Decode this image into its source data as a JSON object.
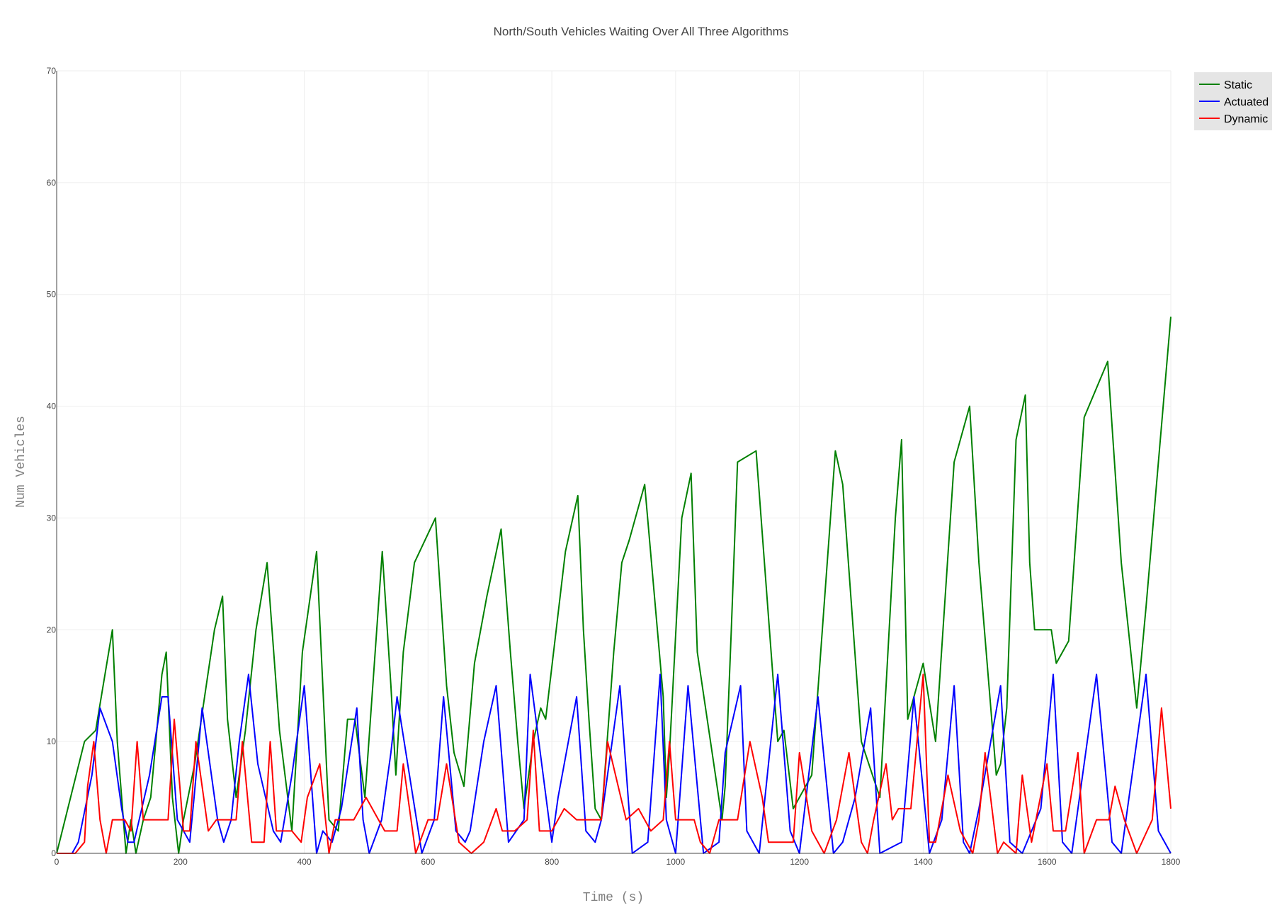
{
  "chart_data": {
    "type": "line",
    "title": "North/South Vehicles Waiting Over All Three Algorithms",
    "xlabel": "Time (s)",
    "ylabel": "Num Vehicles",
    "xlim": [
      0,
      1800
    ],
    "ylim": [
      0,
      70
    ],
    "x_ticks": [
      0,
      200,
      400,
      600,
      800,
      1000,
      1200,
      1400,
      1600,
      1800
    ],
    "y_ticks": [
      0,
      10,
      20,
      30,
      40,
      50,
      60,
      70
    ],
    "grid": true,
    "legend_position": "top-right",
    "series": [
      {
        "name": "Static",
        "color": "#008000",
        "x": [
          0,
          45,
          63,
          90,
          98,
          112,
          120,
          128,
          140,
          152,
          170,
          177,
          187,
          197,
          205,
          223,
          255,
          268,
          276,
          290,
          305,
          322,
          340,
          360,
          380,
          397,
          420,
          440,
          455,
          470,
          482,
          498,
          526,
          540,
          548,
          560,
          578,
          612,
          630,
          642,
          658,
          675,
          695,
          718,
          733,
          745,
          755,
          770,
          782,
          790,
          822,
          842,
          851,
          860,
          870,
          880,
          900,
          913,
          925,
          950,
          980,
          985,
          990,
          1010,
          1025,
          1035,
          1075,
          1080,
          1090,
          1100,
          1130,
          1165,
          1175,
          1190,
          1220,
          1258,
          1270,
          1300,
          1330,
          1355,
          1365,
          1375,
          1400,
          1420,
          1450,
          1475,
          1490,
          1518,
          1525,
          1535,
          1550,
          1565,
          1572,
          1580,
          1607,
          1615,
          1635,
          1660,
          1698,
          1720,
          1745,
          1760,
          1800
        ],
        "values": [
          0,
          10,
          11,
          20,
          10,
          0,
          3,
          0,
          3,
          5,
          16,
          18,
          5,
          0,
          3,
          8,
          20,
          23,
          12,
          5,
          11,
          20,
          26,
          11,
          2,
          18,
          27,
          3,
          2,
          12,
          12,
          5,
          27,
          15,
          7,
          18,
          26,
          30,
          15,
          9,
          6,
          17,
          23,
          29,
          18,
          10,
          4,
          10,
          13,
          12,
          27,
          32,
          20,
          12,
          4,
          3,
          18,
          26,
          28,
          33,
          14,
          5,
          9,
          30,
          34,
          18,
          3,
          6,
          20,
          35,
          36,
          10,
          11,
          4,
          7,
          36,
          33,
          10,
          5,
          30,
          37,
          12,
          17,
          10,
          35,
          40,
          26,
          7,
          8,
          13,
          37,
          41,
          26,
          20,
          20,
          17,
          19,
          39,
          44,
          26,
          13,
          22,
          48
        ]
      },
      {
        "name": "Actuated",
        "color": "#0000ff",
        "x": [
          0,
          25,
          35,
          57,
          70,
          90,
          105,
          115,
          125,
          150,
          170,
          180,
          195,
          215,
          222,
          235,
          260,
          270,
          282,
          295,
          310,
          325,
          350,
          362,
          380,
          400,
          420,
          430,
          445,
          460,
          485,
          495,
          505,
          525,
          540,
          550,
          590,
          610,
          625,
          645,
          660,
          668,
          690,
          710,
          730,
          755,
          765,
          800,
          810,
          840,
          855,
          870,
          880,
          910,
          930,
          955,
          975,
          985,
          1000,
          1020,
          1045,
          1070,
          1080,
          1105,
          1115,
          1135,
          1165,
          1185,
          1200,
          1230,
          1255,
          1270,
          1290,
          1315,
          1330,
          1365,
          1385,
          1410,
          1430,
          1450,
          1465,
          1475,
          1490,
          1525,
          1540,
          1560,
          1590,
          1610,
          1625,
          1640,
          1680,
          1705,
          1720,
          1760,
          1780,
          1800
        ],
        "values": [
          0,
          0,
          1,
          7,
          13,
          10,
          4,
          1,
          1,
          7,
          14,
          14,
          3,
          1,
          5,
          13,
          3,
          1,
          3,
          10,
          16,
          8,
          2,
          1,
          7,
          15,
          0,
          2,
          1,
          4,
          13,
          3,
          0,
          3,
          9,
          14,
          0,
          3,
          14,
          2,
          1,
          2,
          10,
          15,
          1,
          3,
          16,
          1,
          5,
          14,
          2,
          1,
          3,
          15,
          0,
          1,
          16,
          3,
          0,
          15,
          0,
          1,
          9,
          15,
          2,
          0,
          16,
          2,
          0,
          14,
          0,
          1,
          5,
          13,
          0,
          1,
          14,
          0,
          3,
          15,
          1,
          0,
          4,
          15,
          1,
          0,
          4,
          16,
          1,
          0,
          16,
          1,
          0,
          16,
          2,
          0
        ]
      },
      {
        "name": "Dynamic",
        "color": "#ff0000",
        "x": [
          0,
          30,
          45,
          50,
          60,
          70,
          80,
          90,
          110,
          120,
          130,
          140,
          150,
          170,
          180,
          190,
          205,
          215,
          225,
          245,
          258,
          270,
          290,
          300,
          315,
          335,
          345,
          355,
          380,
          395,
          405,
          425,
          440,
          450,
          480,
          500,
          520,
          530,
          550,
          560,
          580,
          600,
          615,
          630,
          650,
          670,
          690,
          710,
          720,
          740,
          760,
          770,
          780,
          800,
          820,
          840,
          850,
          870,
          880,
          890,
          920,
          940,
          960,
          980,
          990,
          1000,
          1030,
          1040,
          1055,
          1070,
          1090,
          1100,
          1120,
          1140,
          1150,
          1170,
          1190,
          1200,
          1220,
          1240,
          1260,
          1280,
          1300,
          1310,
          1320,
          1340,
          1350,
          1360,
          1380,
          1400,
          1410,
          1420,
          1440,
          1460,
          1480,
          1490,
          1500,
          1520,
          1530,
          1550,
          1560,
          1575,
          1600,
          1610,
          1630,
          1650,
          1660,
          1680,
          1700,
          1710,
          1725,
          1745,
          1770,
          1785,
          1800
        ],
        "values": [
          0,
          0,
          1,
          6,
          10,
          3,
          0,
          3,
          3,
          2,
          10,
          3,
          3,
          3,
          3,
          12,
          2,
          2,
          10,
          2,
          3,
          3,
          3,
          10,
          1,
          1,
          10,
          2,
          2,
          1,
          5,
          8,
          0,
          3,
          3,
          5,
          3,
          2,
          2,
          8,
          0,
          3,
          3,
          8,
          1,
          0,
          1,
          4,
          2,
          2,
          3,
          11,
          2,
          2,
          4,
          3,
          3,
          3,
          3,
          10,
          3,
          4,
          2,
          3,
          10,
          3,
          3,
          1,
          0,
          3,
          3,
          3,
          10,
          5,
          1,
          1,
          1,
          9,
          2,
          0,
          3,
          9,
          1,
          0,
          3,
          8,
          3,
          4,
          4,
          16,
          1,
          1,
          7,
          2,
          0,
          3,
          9,
          0,
          1,
          0,
          7,
          1,
          8,
          2,
          2,
          9,
          0,
          3,
          3,
          6,
          3,
          0,
          3,
          13,
          4
        ]
      }
    ]
  }
}
